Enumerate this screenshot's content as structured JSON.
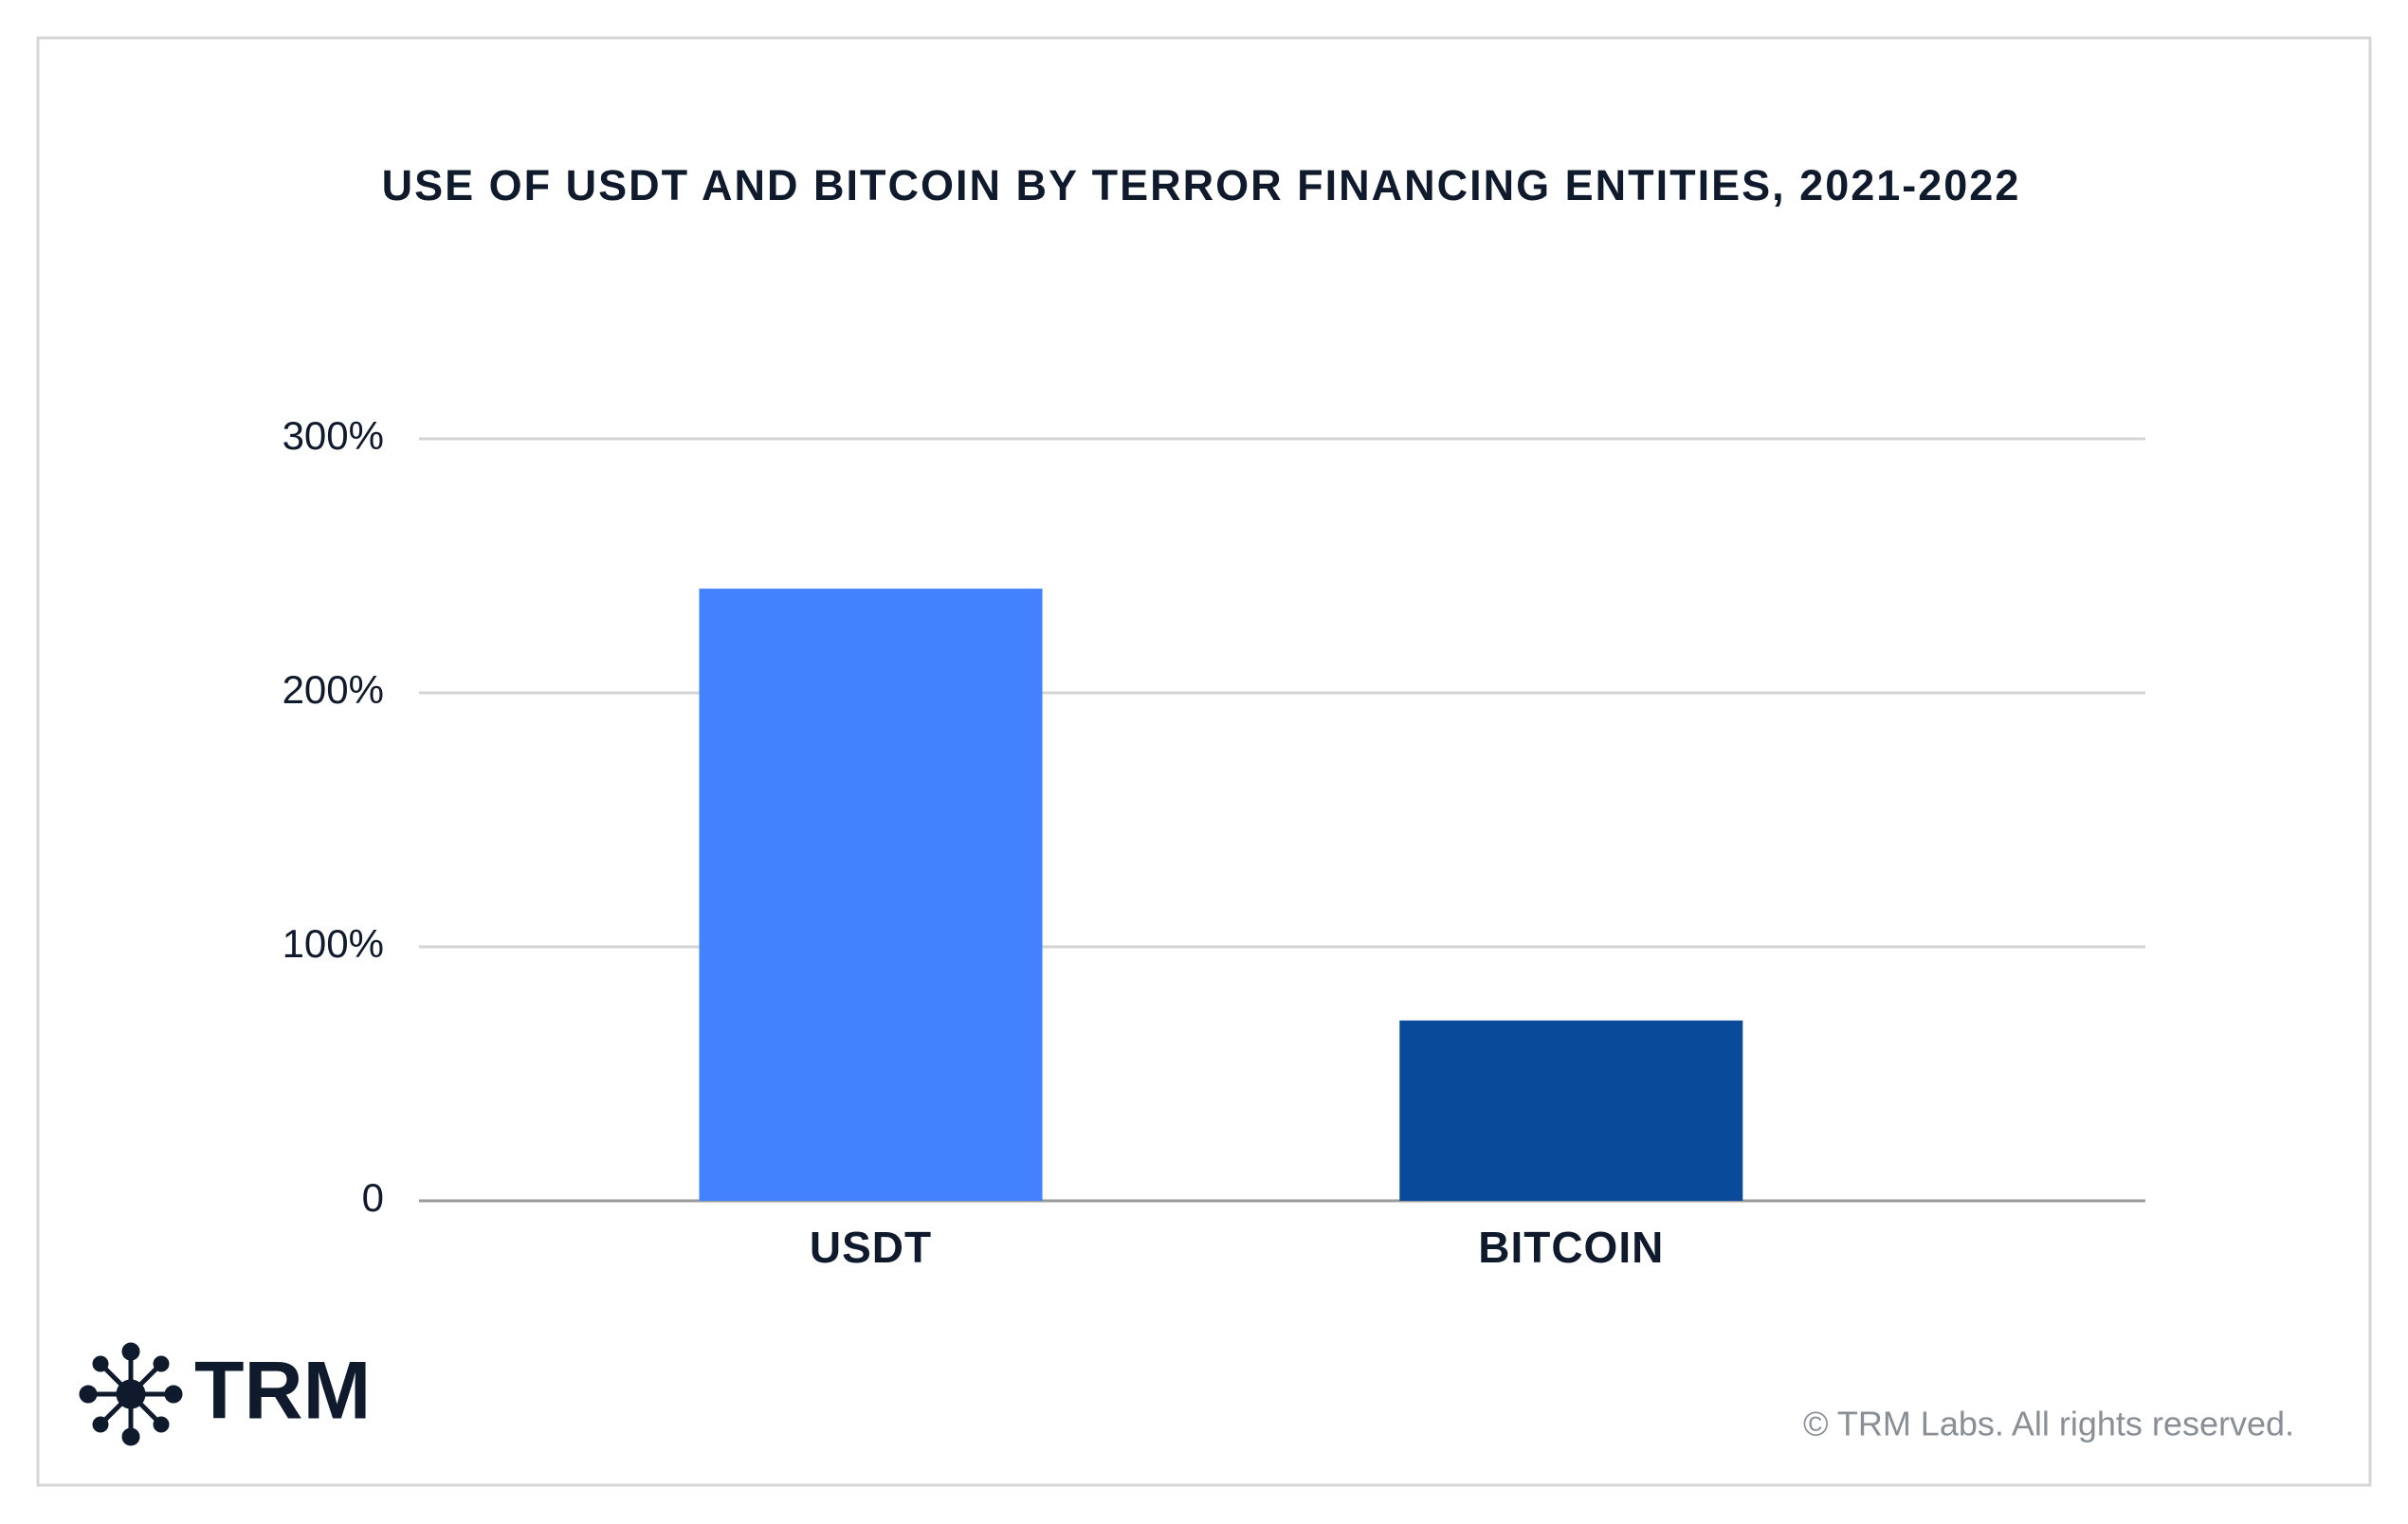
{
  "chart_data": {
    "type": "bar",
    "title": "USE OF USDT AND BITCOIN BY TERROR FINANCING ENTITIES, 2021-2022",
    "categories": [
      "USDT",
      "BITCOIN"
    ],
    "values": [
      241,
      71
    ],
    "colors": [
      "#4282fe",
      "#0a4a9a"
    ],
    "ylim": [
      0,
      300
    ],
    "yticks": [
      0,
      {
        "value": 100,
        "label": "100%"
      },
      {
        "value": 200,
        "label": "200%"
      },
      {
        "value": 300,
        "label": "300%"
      }
    ],
    "grid": true
  },
  "logo": "TRM",
  "footer": "© TRM Labs. All rights reserved."
}
